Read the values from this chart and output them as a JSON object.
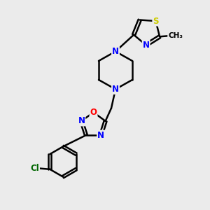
{
  "bg_color": "#ebebeb",
  "bond_color": "#000000",
  "atom_colors": {
    "N": "#0000ff",
    "O": "#ff0000",
    "S": "#cccc00",
    "Cl": "#006600",
    "C": "#000000"
  },
  "bond_width": 1.8,
  "font_size": 8.5,
  "figsize": [
    3.0,
    3.0
  ],
  "dpi": 100
}
